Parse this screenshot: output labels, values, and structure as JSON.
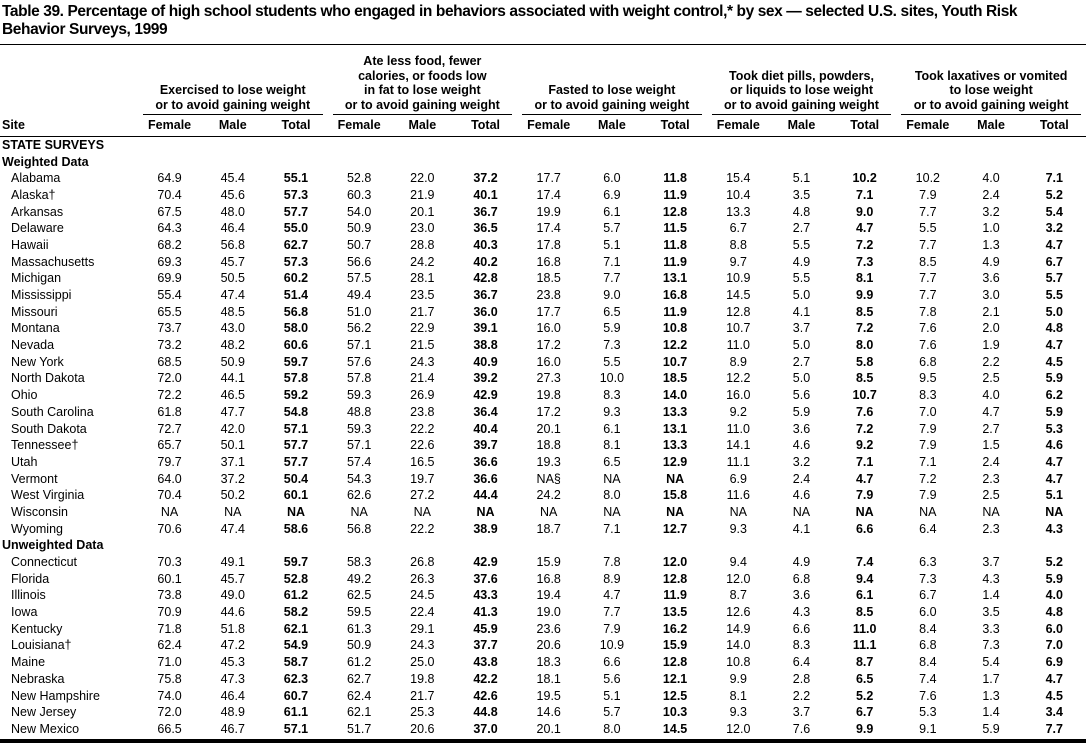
{
  "title": {
    "text": "Table 39. Percentage of high school students who engaged in behaviors associated with weight control,* by sex — selected U.S. sites, Youth Risk Behavior Surveys, 1999"
  },
  "table": {
    "site_header": "Site",
    "sub_headers": [
      "Female",
      "Male",
      "Total"
    ],
    "column_groups": [
      {
        "label": [
          "Exercised to lose weight",
          "or to avoid gaining weight"
        ]
      },
      {
        "label": [
          "Ate less food, fewer",
          "calories, or foods low",
          "in fat to lose weight",
          "or to avoid gaining weight"
        ]
      },
      {
        "label": [
          "Fasted to lose weight",
          "or to avoid gaining weight"
        ]
      },
      {
        "label": [
          "Took diet pills, powders,",
          "or liquids to lose weight",
          "or to avoid gaining weight"
        ]
      },
      {
        "label": [
          "Took laxatives or vomited",
          "to lose weight",
          "or to avoid gaining weight"
        ]
      }
    ],
    "sections": [
      {
        "label": "STATE SURVEYS",
        "rows": []
      },
      {
        "label": "Weighted Data",
        "rows": [
          {
            "site": "Alabama",
            "values": [
              "64.9",
              "45.4",
              "55.1",
              "52.8",
              "22.0",
              "37.2",
              "17.7",
              "6.0",
              "11.8",
              "15.4",
              "5.1",
              "10.2",
              "10.2",
              "4.0",
              "7.1"
            ]
          },
          {
            "site": "Alaska†",
            "values": [
              "70.4",
              "45.6",
              "57.3",
              "60.3",
              "21.9",
              "40.1",
              "17.4",
              "6.9",
              "11.9",
              "10.4",
              "3.5",
              "7.1",
              "7.9",
              "2.4",
              "5.2"
            ]
          },
          {
            "site": "Arkansas",
            "values": [
              "67.5",
              "48.0",
              "57.7",
              "54.0",
              "20.1",
              "36.7",
              "19.9",
              "6.1",
              "12.8",
              "13.3",
              "4.8",
              "9.0",
              "7.7",
              "3.2",
              "5.4"
            ]
          },
          {
            "site": "Delaware",
            "values": [
              "64.3",
              "46.4",
              "55.0",
              "50.9",
              "23.0",
              "36.5",
              "17.4",
              "5.7",
              "11.5",
              "6.7",
              "2.7",
              "4.7",
              "5.5",
              "1.0",
              "3.2"
            ]
          },
          {
            "site": "Hawaii",
            "values": [
              "68.2",
              "56.8",
              "62.7",
              "50.7",
              "28.8",
              "40.3",
              "17.8",
              "5.1",
              "11.8",
              "8.8",
              "5.5",
              "7.2",
              "7.7",
              "1.3",
              "4.7"
            ]
          },
          {
            "site": "Massachusetts",
            "values": [
              "69.3",
              "45.7",
              "57.3",
              "56.6",
              "24.2",
              "40.2",
              "16.8",
              "7.1",
              "11.9",
              "9.7",
              "4.9",
              "7.3",
              "8.5",
              "4.9",
              "6.7"
            ]
          },
          {
            "site": "Michigan",
            "values": [
              "69.9",
              "50.5",
              "60.2",
              "57.5",
              "28.1",
              "42.8",
              "18.5",
              "7.7",
              "13.1",
              "10.9",
              "5.5",
              "8.1",
              "7.7",
              "3.6",
              "5.7"
            ]
          },
          {
            "site": "Mississippi",
            "values": [
              "55.4",
              "47.4",
              "51.4",
              "49.4",
              "23.5",
              "36.7",
              "23.8",
              "9.0",
              "16.8",
              "14.5",
              "5.0",
              "9.9",
              "7.7",
              "3.0",
              "5.5"
            ]
          },
          {
            "site": "Missouri",
            "values": [
              "65.5",
              "48.5",
              "56.8",
              "51.0",
              "21.7",
              "36.0",
              "17.7",
              "6.5",
              "11.9",
              "12.8",
              "4.1",
              "8.5",
              "7.8",
              "2.1",
              "5.0"
            ]
          },
          {
            "site": "Montana",
            "values": [
              "73.7",
              "43.0",
              "58.0",
              "56.2",
              "22.9",
              "39.1",
              "16.0",
              "5.9",
              "10.8",
              "10.7",
              "3.7",
              "7.2",
              "7.6",
              "2.0",
              "4.8"
            ]
          },
          {
            "site": "Nevada",
            "values": [
              "73.2",
              "48.2",
              "60.6",
              "57.1",
              "21.5",
              "38.8",
              "17.2",
              "7.3",
              "12.2",
              "11.0",
              "5.0",
              "8.0",
              "7.6",
              "1.9",
              "4.7"
            ]
          },
          {
            "site": "New York",
            "values": [
              "68.5",
              "50.9",
              "59.7",
              "57.6",
              "24.3",
              "40.9",
              "16.0",
              "5.5",
              "10.7",
              "8.9",
              "2.7",
              "5.8",
              "6.8",
              "2.2",
              "4.5"
            ]
          },
          {
            "site": "North Dakota",
            "values": [
              "72.0",
              "44.1",
              "57.8",
              "57.8",
              "21.4",
              "39.2",
              "27.3",
              "10.0",
              "18.5",
              "12.2",
              "5.0",
              "8.5",
              "9.5",
              "2.5",
              "5.9"
            ]
          },
          {
            "site": "Ohio",
            "values": [
              "72.2",
              "46.5",
              "59.2",
              "59.3",
              "26.9",
              "42.9",
              "19.8",
              "8.3",
              "14.0",
              "16.0",
              "5.6",
              "10.7",
              "8.3",
              "4.0",
              "6.2"
            ]
          },
          {
            "site": "South Carolina",
            "values": [
              "61.8",
              "47.7",
              "54.8",
              "48.8",
              "23.8",
              "36.4",
              "17.2",
              "9.3",
              "13.3",
              "9.2",
              "5.9",
              "7.6",
              "7.0",
              "4.7",
              "5.9"
            ]
          },
          {
            "site": "South Dakota",
            "values": [
              "72.7",
              "42.0",
              "57.1",
              "59.3",
              "22.2",
              "40.4",
              "20.1",
              "6.1",
              "13.1",
              "11.0",
              "3.6",
              "7.2",
              "7.9",
              "2.7",
              "5.3"
            ]
          },
          {
            "site": "Tennessee†",
            "values": [
              "65.7",
              "50.1",
              "57.7",
              "57.1",
              "22.6",
              "39.7",
              "18.8",
              "8.1",
              "13.3",
              "14.1",
              "4.6",
              "9.2",
              "7.9",
              "1.5",
              "4.6"
            ]
          },
          {
            "site": "Utah",
            "values": [
              "79.7",
              "37.1",
              "57.7",
              "57.4",
              "16.5",
              "36.6",
              "19.3",
              "6.5",
              "12.9",
              "11.1",
              "3.2",
              "7.1",
              "7.1",
              "2.4",
              "4.7"
            ]
          },
          {
            "site": "Vermont",
            "values": [
              "64.0",
              "37.2",
              "50.4",
              "54.3",
              "19.7",
              "36.6",
              "NA§",
              "NA",
              "NA",
              "6.9",
              "2.4",
              "4.7",
              "7.2",
              "2.3",
              "4.7"
            ]
          },
          {
            "site": "West Virginia",
            "values": [
              "70.4",
              "50.2",
              "60.1",
              "62.6",
              "27.2",
              "44.4",
              "24.2",
              "8.0",
              "15.8",
              "11.6",
              "4.6",
              "7.9",
              "7.9",
              "2.5",
              "5.1"
            ]
          },
          {
            "site": "Wisconsin",
            "values": [
              "NA",
              "NA",
              "NA",
              "NA",
              "NA",
              "NA",
              "NA",
              "NA",
              "NA",
              "NA",
              "NA",
              "NA",
              "NA",
              "NA",
              "NA"
            ]
          },
          {
            "site": "Wyoming",
            "values": [
              "70.6",
              "47.4",
              "58.6",
              "56.8",
              "22.2",
              "38.9",
              "18.7",
              "7.1",
              "12.7",
              "9.3",
              "4.1",
              "6.6",
              "6.4",
              "2.3",
              "4.3"
            ]
          }
        ]
      },
      {
        "label": "Unweighted Data",
        "rows": [
          {
            "site": "Connecticut",
            "values": [
              "70.3",
              "49.1",
              "59.7",
              "58.3",
              "26.8",
              "42.9",
              "15.9",
              "7.8",
              "12.0",
              "9.4",
              "4.9",
              "7.4",
              "6.3",
              "3.7",
              "5.2"
            ]
          },
          {
            "site": "Florida",
            "values": [
              "60.1",
              "45.7",
              "52.8",
              "49.2",
              "26.3",
              "37.6",
              "16.8",
              "8.9",
              "12.8",
              "12.0",
              "6.8",
              "9.4",
              "7.3",
              "4.3",
              "5.9"
            ]
          },
          {
            "site": "Illinois",
            "values": [
              "73.8",
              "49.0",
              "61.2",
              "62.5",
              "24.5",
              "43.3",
              "19.4",
              "4.7",
              "11.9",
              "8.7",
              "3.6",
              "6.1",
              "6.7",
              "1.4",
              "4.0"
            ]
          },
          {
            "site": "Iowa",
            "values": [
              "70.9",
              "44.6",
              "58.2",
              "59.5",
              "22.4",
              "41.3",
              "19.0",
              "7.7",
              "13.5",
              "12.6",
              "4.3",
              "8.5",
              "6.0",
              "3.5",
              "4.8"
            ]
          },
          {
            "site": "Kentucky",
            "values": [
              "71.8",
              "51.8",
              "62.1",
              "61.3",
              "29.1",
              "45.9",
              "23.6",
              "7.9",
              "16.2",
              "14.9",
              "6.6",
              "11.0",
              "8.4",
              "3.3",
              "6.0"
            ]
          },
          {
            "site": "Louisiana†",
            "values": [
              "62.4",
              "47.2",
              "54.9",
              "50.9",
              "24.3",
              "37.7",
              "20.6",
              "10.9",
              "15.9",
              "14.0",
              "8.3",
              "11.1",
              "6.8",
              "7.3",
              "7.0"
            ]
          },
          {
            "site": "Maine",
            "values": [
              "71.0",
              "45.3",
              "58.7",
              "61.2",
              "25.0",
              "43.8",
              "18.3",
              "6.6",
              "12.8",
              "10.8",
              "6.4",
              "8.7",
              "8.4",
              "5.4",
              "6.9"
            ]
          },
          {
            "site": "Nebraska",
            "values": [
              "75.8",
              "47.3",
              "62.3",
              "62.7",
              "19.8",
              "42.2",
              "18.1",
              "5.6",
              "12.1",
              "9.9",
              "2.8",
              "6.5",
              "7.4",
              "1.7",
              "4.7"
            ]
          },
          {
            "site": "New Hampshire",
            "values": [
              "74.0",
              "46.4",
              "60.7",
              "62.4",
              "21.7",
              "42.6",
              "19.5",
              "5.1",
              "12.5",
              "8.1",
              "2.2",
              "5.2",
              "7.6",
              "1.3",
              "4.5"
            ]
          },
          {
            "site": "New Jersey",
            "values": [
              "72.0",
              "48.9",
              "61.1",
              "62.1",
              "25.3",
              "44.8",
              "14.6",
              "5.7",
              "10.3",
              "9.3",
              "3.7",
              "6.7",
              "5.3",
              "1.4",
              "3.4"
            ]
          },
          {
            "site": "New Mexico",
            "values": [
              "66.5",
              "46.7",
              "57.1",
              "51.7",
              "20.6",
              "37.0",
              "20.1",
              "8.0",
              "14.5",
              "12.0",
              "7.6",
              "9.9",
              "9.1",
              "5.9",
              "7.7"
            ]
          }
        ]
      }
    ]
  }
}
